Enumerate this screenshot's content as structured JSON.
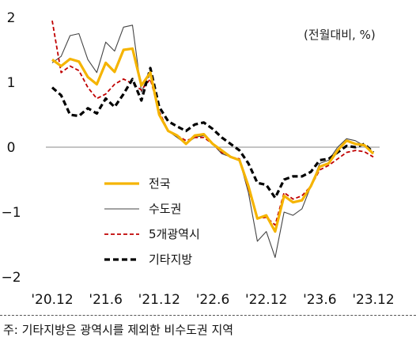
{
  "chart_data": {
    "type": "line",
    "unit_label": "(전월대비, %)",
    "ylim": [
      -2,
      2
    ],
    "yticks": [
      "2",
      "1",
      "0",
      "−1",
      "−2"
    ],
    "ytick_values": [
      2,
      1,
      0,
      -1,
      -2
    ],
    "xtick_labels": [
      "'20.12",
      "'21.6",
      "'21.12",
      "'22.6",
      "'22.12",
      "'23.6",
      "'23.12"
    ],
    "xtick_index": [
      0,
      6,
      12,
      18,
      24,
      30,
      36
    ],
    "x": [
      "2020-12",
      "2021-01",
      "2021-02",
      "2021-03",
      "2021-04",
      "2021-05",
      "2021-06",
      "2021-07",
      "2021-08",
      "2021-09",
      "2021-10",
      "2021-11",
      "2021-12",
      "2022-01",
      "2022-02",
      "2022-03",
      "2022-04",
      "2022-05",
      "2022-06",
      "2022-07",
      "2022-08",
      "2022-09",
      "2022-10",
      "2022-11",
      "2022-12",
      "2023-01",
      "2023-02",
      "2023-03",
      "2023-04",
      "2023-05",
      "2023-06",
      "2023-07",
      "2023-08",
      "2023-09",
      "2023-10",
      "2023-11",
      "2023-12"
    ],
    "legend_position": "lower-left",
    "series": [
      {
        "name": "전국",
        "color": "#f5b400",
        "style": "solid-thick",
        "values": [
          1.35,
          1.25,
          1.36,
          1.32,
          1.08,
          0.97,
          1.3,
          1.16,
          1.5,
          1.52,
          0.95,
          1.15,
          0.5,
          0.25,
          0.18,
          0.05,
          0.18,
          0.2,
          0.05,
          -0.05,
          -0.15,
          -0.2,
          -0.6,
          -1.1,
          -1.05,
          -1.3,
          -0.75,
          -0.85,
          -0.82,
          -0.6,
          -0.3,
          -0.25,
          -0.05,
          0.1,
          0.05,
          0.03,
          -0.1
        ]
      },
      {
        "name": "수도권",
        "color": "#444444",
        "style": "solid-thin",
        "values": [
          1.3,
          1.4,
          1.72,
          1.75,
          1.35,
          1.15,
          1.62,
          1.48,
          1.85,
          1.88,
          0.85,
          1.18,
          0.5,
          0.25,
          0.15,
          0.05,
          0.15,
          0.18,
          0.05,
          -0.1,
          -0.15,
          -0.2,
          -0.7,
          -1.45,
          -1.3,
          -1.7,
          -1.0,
          -1.05,
          -0.95,
          -0.6,
          -0.25,
          -0.2,
          0.0,
          0.13,
          0.1,
          0.02,
          -0.1
        ]
      },
      {
        "name": "5개광역시",
        "color": "#c00000",
        "style": "dashed",
        "values": [
          1.95,
          1.15,
          1.25,
          1.18,
          0.92,
          0.75,
          0.82,
          0.97,
          1.05,
          0.98,
          0.88,
          1.05,
          0.55,
          0.25,
          0.18,
          0.1,
          0.15,
          0.15,
          0.05,
          -0.08,
          -0.15,
          -0.18,
          -0.65,
          -1.1,
          -1.08,
          -1.2,
          -0.7,
          -0.8,
          -0.75,
          -0.6,
          -0.35,
          -0.28,
          -0.18,
          -0.08,
          -0.05,
          -0.07,
          -0.15
        ]
      },
      {
        "name": "기타지방",
        "color": "#000000",
        "style": "dashed-thick",
        "values": [
          0.92,
          0.8,
          0.5,
          0.48,
          0.6,
          0.52,
          0.75,
          0.62,
          0.82,
          1.05,
          0.72,
          1.22,
          0.62,
          0.4,
          0.32,
          0.25,
          0.35,
          0.38,
          0.28,
          0.15,
          0.05,
          -0.05,
          -0.25,
          -0.55,
          -0.58,
          -0.78,
          -0.5,
          -0.45,
          -0.45,
          -0.38,
          -0.2,
          -0.18,
          -0.08,
          0.02,
          0.0,
          0.05,
          -0.08
        ]
      }
    ]
  },
  "footnote": "주: 기타지방은 광역시를 제외한 비수도권 지역"
}
